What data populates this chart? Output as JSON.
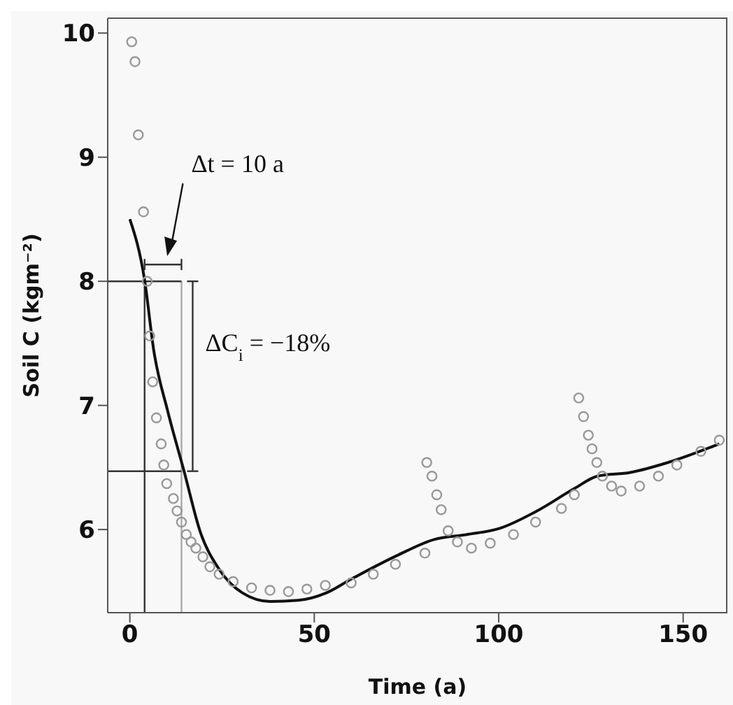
{
  "chart_data": {
    "type": "scatter",
    "xlabel": "Time (a)",
    "ylabel": "Soil C (kgm⁻²)",
    "xlim": [
      -6,
      162
    ],
    "ylim": [
      5.33,
      10.12
    ],
    "xticks": [
      0,
      50,
      100,
      150
    ],
    "yticks": [
      6,
      7,
      8,
      9,
      10
    ],
    "series": [
      {
        "color": "#999999",
        "marker": "circle",
        "x": [
          0.5,
          1.4,
          2.3,
          3.7,
          4.7,
          5.4,
          6.2,
          7.2,
          8.5,
          9.2,
          10,
          11.8,
          12.8,
          14,
          15.3,
          16.6,
          17.9,
          19.8,
          21.7,
          24.2,
          28,
          33,
          38,
          43,
          48,
          53,
          60,
          66,
          72,
          80,
          80.5,
          81.9,
          83.2,
          84.4,
          86.3,
          88.8,
          92.6,
          97.7,
          104,
          110,
          117,
          120.5,
          121.7,
          123,
          124.3,
          125.3,
          126.6,
          128.1,
          130.6,
          133.2,
          138.2,
          143.3,
          148.3,
          154.8,
          159.8
        ],
        "values": [
          9.93,
          9.77,
          9.18,
          8.56,
          8.0,
          7.56,
          7.19,
          6.9,
          6.69,
          6.52,
          6.37,
          6.25,
          6.15,
          6.06,
          5.96,
          5.9,
          5.85,
          5.78,
          5.7,
          5.64,
          5.58,
          5.53,
          5.51,
          5.5,
          5.52,
          5.55,
          5.57,
          5.64,
          5.72,
          5.81,
          6.54,
          6.43,
          6.28,
          6.16,
          5.99,
          5.9,
          5.85,
          5.89,
          5.96,
          6.06,
          6.17,
          6.28,
          7.06,
          6.91,
          6.76,
          6.65,
          6.54,
          6.43,
          6.35,
          6.31,
          6.35,
          6.43,
          6.52,
          6.63,
          6.72
        ]
      },
      {
        "type": "line",
        "color": "#111111",
        "marker": "none",
        "line_style": "solid",
        "x": [
          0,
          4,
          6.5,
          10.3,
          14.7,
          19.1,
          24.2,
          30.5,
          38,
          45.7,
          53.3,
          60,
          72.4,
          82.5,
          91.4,
          100.3,
          110.4,
          120.5,
          126.8,
          135.7,
          145.9,
          159.8
        ],
        "values": [
          8.5,
          8.01,
          7.44,
          6.95,
          6.47,
          5.98,
          5.68,
          5.49,
          5.42,
          5.43,
          5.49,
          5.6,
          5.79,
          5.92,
          5.96,
          6.01,
          6.15,
          6.33,
          6.43,
          6.46,
          6.54,
          6.69
        ]
      }
    ],
    "ref_lines": [
      {
        "axis": "x",
        "value": 4,
        "color": "#333333"
      },
      {
        "axis": "x",
        "value": 14,
        "color": "#aaaaaa"
      },
      {
        "axis": "y",
        "value": 8,
        "color": "#333333"
      },
      {
        "axis": "y",
        "value": 6.47,
        "color": "#333333"
      }
    ],
    "annotations": [
      "Δt = 10 a",
      "ΔC$_{i}$ = −18%"
    ]
  }
}
